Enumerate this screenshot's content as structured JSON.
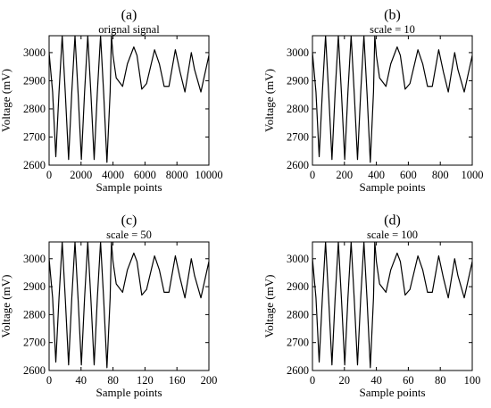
{
  "figure": {
    "panels": [
      {
        "letter": "(a)",
        "title": "orignal signal"
      },
      {
        "letter": "(b)",
        "title": "scale = 10"
      },
      {
        "letter": "(c)",
        "title": "scale = 50"
      },
      {
        "letter": "(d)",
        "title": "scale = 100"
      }
    ]
  },
  "chart_data": [
    {
      "type": "line",
      "title": "orignal signal",
      "xlabel": "Sample points",
      "ylabel": "Voltage (mV)",
      "xlim": [
        0,
        10000
      ],
      "ylim": [
        2600,
        3060
      ],
      "xticks": [
        0,
        2000,
        4000,
        6000,
        8000,
        10000
      ],
      "yticks": [
        2600,
        2700,
        2800,
        2900,
        3000
      ],
      "grid": false,
      "series": [
        {
          "x": [
            0,
            220,
            420,
            620,
            820,
            1020,
            1220,
            1420,
            1620,
            1820,
            2020,
            2220,
            2420,
            2620,
            2820,
            3020,
            3220,
            3420,
            3620,
            3820,
            3900,
            4000,
            4200,
            4600,
            4900,
            5300,
            5500,
            5800,
            6100,
            6600,
            6900,
            7200,
            7500,
            7900,
            8200,
            8500,
            8900,
            9100,
            9500,
            10000
          ],
          "y": [
            3000,
            2860,
            2630,
            2860,
            3060,
            2850,
            2620,
            2860,
            3060,
            2850,
            2620,
            2860,
            3060,
            2850,
            2620,
            2860,
            3060,
            2850,
            2610,
            2860,
            3060,
            2990,
            2910,
            2880,
            2960,
            3020,
            2990,
            2870,
            2890,
            3010,
            2960,
            2880,
            2880,
            3010,
            2930,
            2860,
            3000,
            2940,
            2860,
            2990
          ]
        }
      ]
    },
    {
      "type": "line",
      "title": "scale = 10",
      "xlabel": "Sample points",
      "ylabel": "Voltage (mV)",
      "xlim": [
        0,
        1000
      ],
      "ylim": [
        2600,
        3060
      ],
      "xticks": [
        0,
        200,
        400,
        600,
        800,
        1000
      ],
      "yticks": [
        2600,
        2700,
        2800,
        2900,
        3000
      ],
      "grid": false,
      "series": [
        {
          "x": [
            0,
            22,
            42,
            62,
            82,
            102,
            122,
            142,
            162,
            182,
            202,
            222,
            242,
            262,
            282,
            302,
            322,
            342,
            362,
            382,
            390,
            400,
            420,
            460,
            490,
            530,
            550,
            580,
            610,
            660,
            690,
            720,
            750,
            790,
            820,
            850,
            890,
            910,
            950,
            1000
          ],
          "y": [
            3000,
            2860,
            2630,
            2860,
            3060,
            2850,
            2620,
            2860,
            3060,
            2850,
            2620,
            2860,
            3060,
            2850,
            2620,
            2860,
            3060,
            2850,
            2610,
            2860,
            3060,
            2990,
            2910,
            2880,
            2960,
            3020,
            2990,
            2870,
            2890,
            3010,
            2960,
            2880,
            2880,
            3010,
            2930,
            2860,
            3000,
            2940,
            2860,
            2990
          ]
        }
      ]
    },
    {
      "type": "line",
      "title": "scale = 50",
      "xlabel": "Sample points",
      "ylabel": "Voltage (mV)",
      "xlim": [
        0,
        200
      ],
      "ylim": [
        2600,
        3060
      ],
      "xticks": [
        0,
        40,
        80,
        120,
        160,
        200
      ],
      "yticks": [
        2600,
        2700,
        2800,
        2900,
        3000
      ],
      "grid": false,
      "series": [
        {
          "x": [
            0,
            4.4,
            8.4,
            12.4,
            16.4,
            20.4,
            24.4,
            28.4,
            32.4,
            36.4,
            40.4,
            44.4,
            48.4,
            52.4,
            56.4,
            60.4,
            64.4,
            68.4,
            72.4,
            76.4,
            78,
            80,
            84,
            92,
            98,
            106,
            110,
            116,
            122,
            132,
            138,
            144,
            150,
            158,
            164,
            170,
            178,
            182,
            190,
            200
          ],
          "y": [
            3000,
            2860,
            2630,
            2860,
            3060,
            2850,
            2620,
            2860,
            3060,
            2850,
            2620,
            2860,
            3060,
            2850,
            2620,
            2860,
            3060,
            2850,
            2610,
            2860,
            3060,
            2990,
            2910,
            2880,
            2960,
            3020,
            2990,
            2870,
            2890,
            3010,
            2960,
            2880,
            2880,
            3010,
            2930,
            2860,
            3000,
            2940,
            2860,
            2990
          ]
        }
      ]
    },
    {
      "type": "line",
      "title": "scale = 100",
      "xlabel": "Sample points",
      "ylabel": "Voltage (mV)",
      "xlim": [
        0,
        100
      ],
      "ylim": [
        2600,
        3060
      ],
      "xticks": [
        0,
        20,
        40,
        60,
        80,
        100
      ],
      "yticks": [
        2600,
        2700,
        2800,
        2900,
        3000
      ],
      "grid": false,
      "series": [
        {
          "x": [
            0,
            2.2,
            4.2,
            6.2,
            8.2,
            10.2,
            12.2,
            14.2,
            16.2,
            18.2,
            20.2,
            22.2,
            24.2,
            26.2,
            28.2,
            30.2,
            32.2,
            34.2,
            36.2,
            38.2,
            39,
            40,
            42,
            46,
            49,
            53,
            55,
            58,
            61,
            66,
            69,
            72,
            75,
            79,
            82,
            85,
            89,
            91,
            95,
            100
          ],
          "y": [
            3000,
            2860,
            2630,
            2860,
            3060,
            2850,
            2620,
            2860,
            3060,
            2850,
            2620,
            2860,
            3060,
            2850,
            2620,
            2860,
            3060,
            2850,
            2610,
            2860,
            3060,
            2990,
            2910,
            2880,
            2960,
            3020,
            2990,
            2870,
            2890,
            3010,
            2960,
            2880,
            2880,
            3010,
            2930,
            2860,
            3000,
            2940,
            2860,
            2990
          ]
        }
      ]
    }
  ]
}
